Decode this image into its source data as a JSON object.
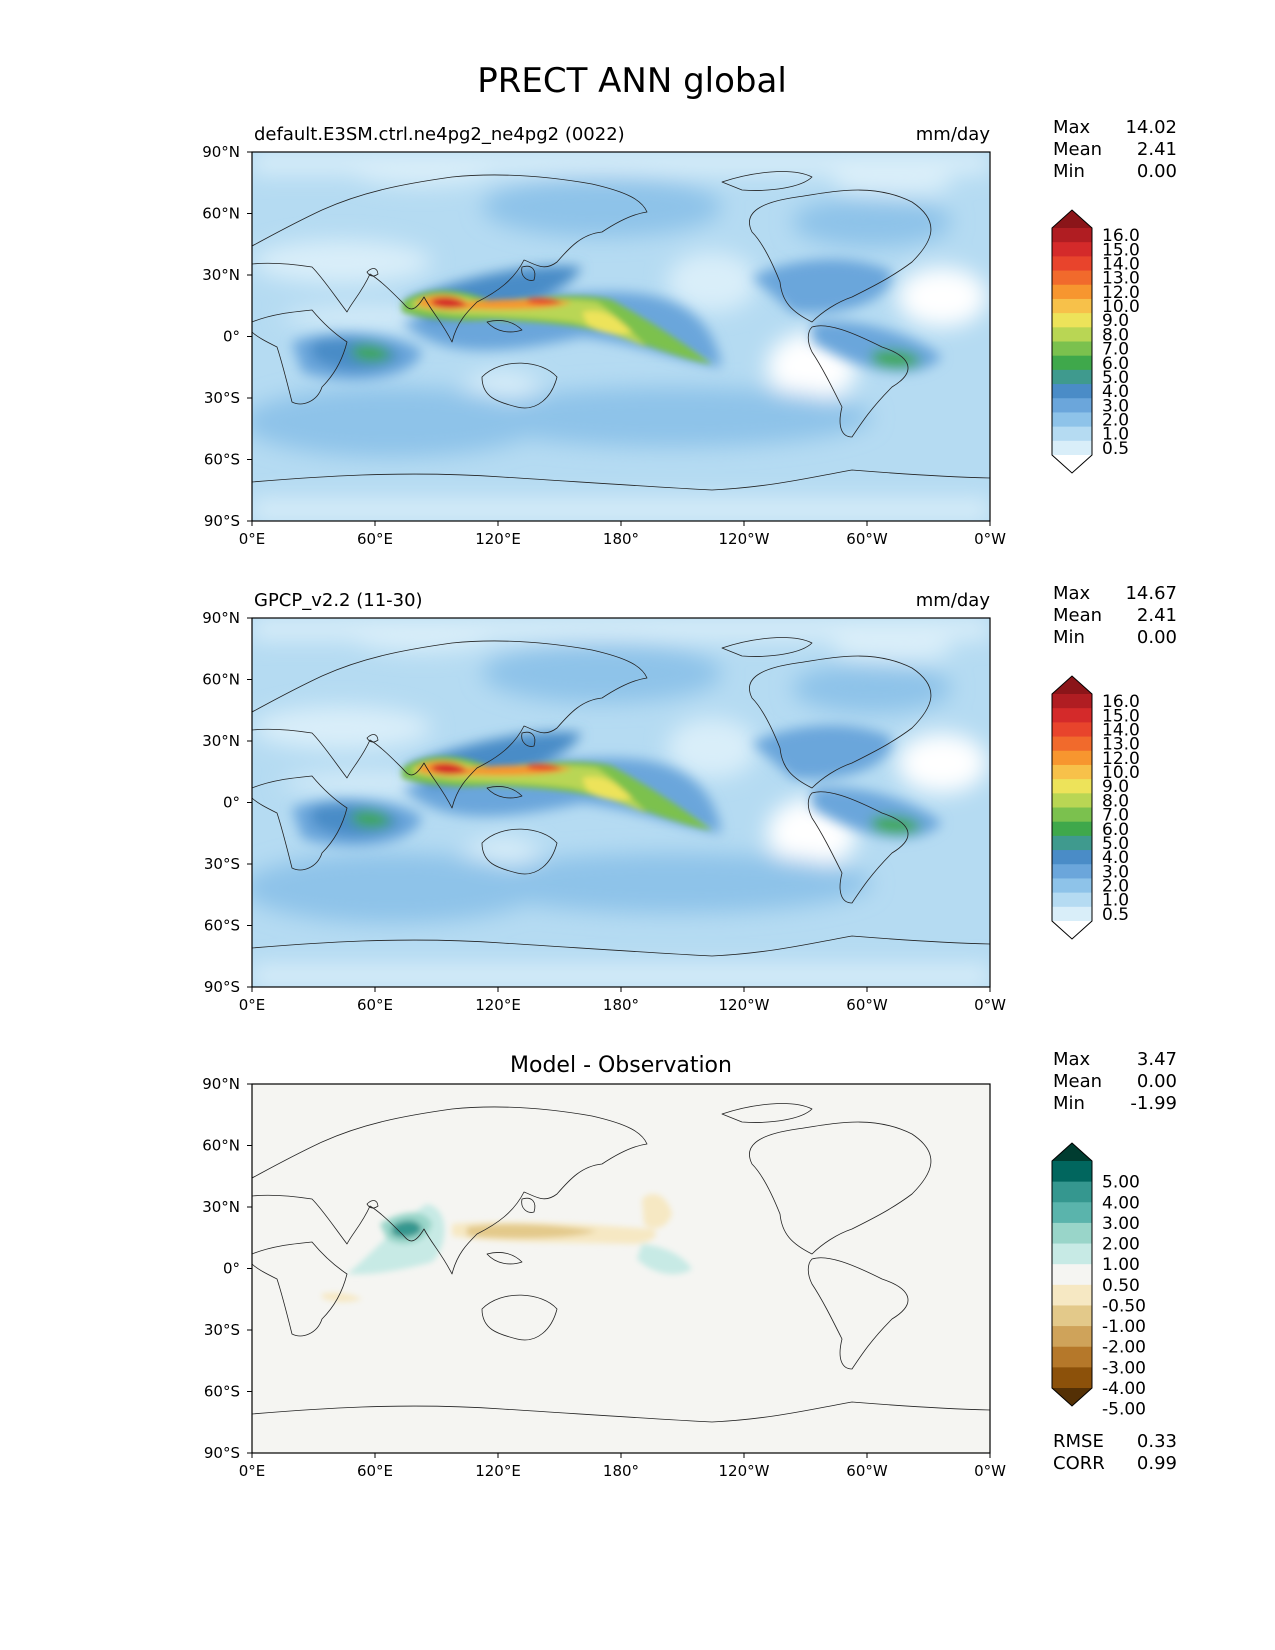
{
  "figure": {
    "title": "PRECT ANN global"
  },
  "axes": {
    "lat_ticks": [
      "90°N",
      "60°N",
      "30°N",
      "0°",
      "30°S",
      "60°S",
      "90°S"
    ],
    "lon_ticks": [
      "0°E",
      "60°E",
      "120°E",
      "180°",
      "120°W",
      "60°W",
      "0°W"
    ]
  },
  "panels": [
    {
      "left_title": "default.E3SM.ctrl.ne4pg2_ne4pg2 (0022)",
      "center_title": "",
      "units": "mm/day",
      "stats": [
        {
          "label": "Max",
          "value": "14.02"
        },
        {
          "label": "Mean",
          "value": "2.41"
        },
        {
          "label": "Min",
          "value": "0.00"
        }
      ],
      "extra_stats": []
    },
    {
      "left_title": "GPCP_v2.2 (11-30)",
      "center_title": "",
      "units": "mm/day",
      "stats": [
        {
          "label": "Max",
          "value": "14.67"
        },
        {
          "label": "Mean",
          "value": "2.41"
        },
        {
          "label": "Min",
          "value": "0.00"
        }
      ],
      "extra_stats": []
    },
    {
      "left_title": "",
      "center_title": "Model - Observation",
      "units": "",
      "stats": [
        {
          "label": "Max",
          "value": "3.47"
        },
        {
          "label": "Mean",
          "value": "0.00"
        },
        {
          "label": "Min",
          "value": "-1.99"
        }
      ],
      "extra_stats": [
        {
          "label": "RMSE",
          "value": "0.33"
        },
        {
          "label": "CORR",
          "value": "0.99"
        }
      ]
    }
  ],
  "colorbars": {
    "precip": {
      "labels": [
        "16.0",
        "15.0",
        "14.0",
        "13.0",
        "12.0",
        "10.0",
        "9.0",
        "8.0",
        "7.0",
        "6.0",
        "5.0",
        "4.0",
        "3.0",
        "2.0",
        "1.0",
        "0.5"
      ],
      "colors": [
        "#8b1519",
        "#b01d22",
        "#d42a2a",
        "#e8442c",
        "#f16a2c",
        "#f7962f",
        "#f7c14a",
        "#ede35a",
        "#b9d654",
        "#7bc14e",
        "#3fa84b",
        "#3f9a8e",
        "#4a8cc7",
        "#6ba6db",
        "#8ec3e9",
        "#b5dbf2",
        "#d9eef9",
        "#ffffff"
      ]
    },
    "diff": {
      "labels": [
        "5.00",
        "4.00",
        "3.00",
        "2.00",
        "1.00",
        "0.50",
        "-0.50",
        "-1.00",
        "-2.00",
        "-3.00",
        "-4.00",
        "-5.00"
      ],
      "colors": [
        "#003c30",
        "#01665e",
        "#35978f",
        "#5ab4ac",
        "#99d5c9",
        "#c7eae5",
        "#f5f5f2",
        "#f6e8c3",
        "#e3c98a",
        "#cfa35a",
        "#b5782a",
        "#8c510a",
        "#543005"
      ]
    }
  }
}
